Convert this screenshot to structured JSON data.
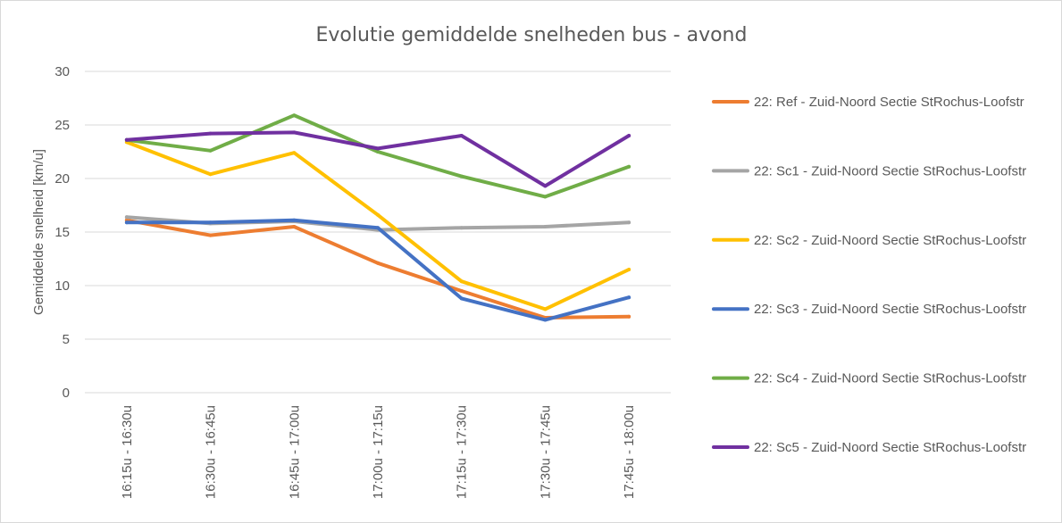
{
  "chart_data": {
    "type": "line",
    "title": "Evolutie gemiddelde snelheden bus  - avond",
    "xlabel": "",
    "ylabel": "Gemiddelde snelheid [km/u]",
    "ylim": [
      0,
      30
    ],
    "yticks": [
      0,
      5,
      10,
      15,
      20,
      25,
      30
    ],
    "grid": true,
    "legend": "right",
    "categories": [
      "16:15u - 16:30u",
      "16:30u - 16:45u",
      "16:45u - 17:00u",
      "17:00u - 17:15u",
      "17:15u - 17:30u",
      "17:30u - 17:45u",
      "17:45u - 18:00u"
    ],
    "series": [
      {
        "name": "22: Ref - Zuid-Noord Sectie StRochus-Loofstr",
        "color": "#ED7D31",
        "values": [
          16.1,
          14.7,
          15.5,
          12.1,
          9.5,
          7.0,
          7.1
        ]
      },
      {
        "name": "22: Sc1 - Zuid-Noord Sectie StRochus-Loofstr",
        "color": "#A5A5A5",
        "values": [
          16.4,
          15.8,
          16.0,
          15.2,
          15.4,
          15.5,
          15.9
        ]
      },
      {
        "name": "22: Sc2 - Zuid-Noord Sectie StRochus-Loofstr",
        "color": "#FFC000",
        "values": [
          23.4,
          20.4,
          22.4,
          16.6,
          10.4,
          7.8,
          11.5
        ]
      },
      {
        "name": "22: Sc3 - Zuid-Noord Sectie StRochus-Loofstr",
        "color": "#4472C4",
        "values": [
          15.9,
          15.9,
          16.1,
          15.4,
          8.8,
          6.8,
          8.9
        ]
      },
      {
        "name": "22: Sc4 - Zuid-Noord Sectie StRochus-Loofstr",
        "color": "#70AD47",
        "values": [
          23.6,
          22.6,
          25.9,
          22.5,
          20.2,
          18.3,
          21.1
        ]
      },
      {
        "name": "22: Sc5 - Zuid-Noord Sectie StRochus-Loofstr",
        "color": "#7030A0",
        "values": [
          23.6,
          24.2,
          24.3,
          22.8,
          24.0,
          19.3,
          24.0
        ]
      }
    ]
  }
}
